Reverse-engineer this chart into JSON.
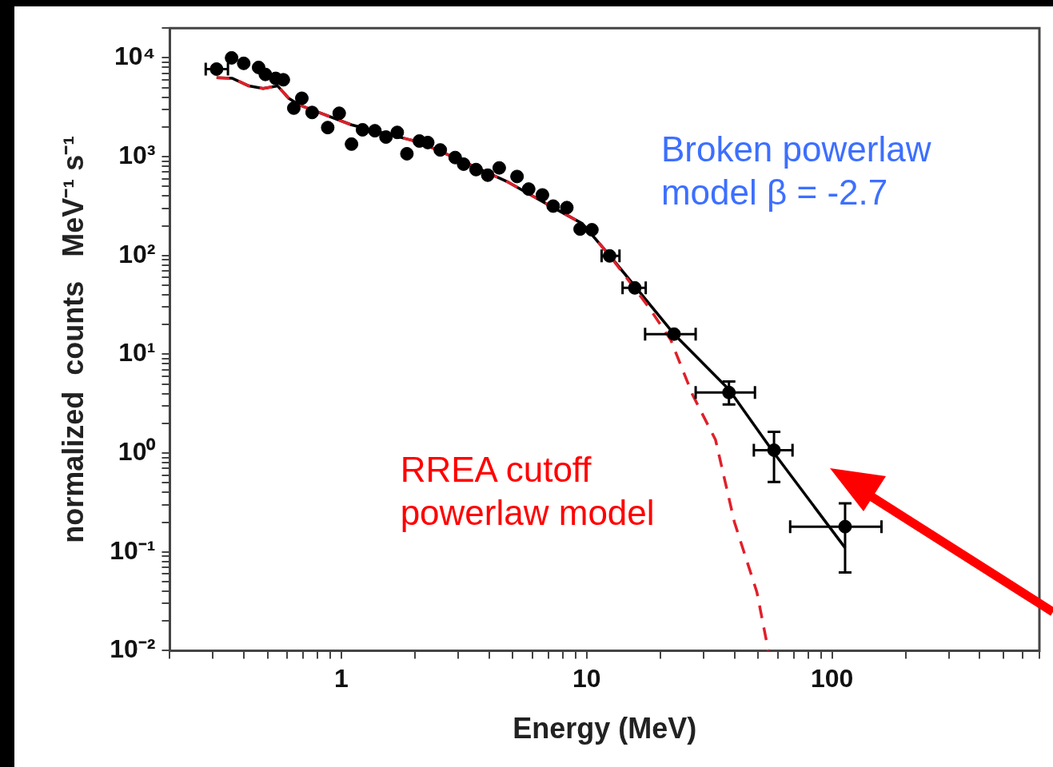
{
  "chart_data": {
    "type": "scatter",
    "xlabel": "Energy (MeV)",
    "ylabel": "normalized  counts   MeV⁻¹ s⁻¹",
    "log": "xy",
    "xlim": [
      0.2,
      700
    ],
    "ylim": [
      0.01,
      20000
    ],
    "xticks": [
      {
        "value": 0.2,
        "label": null
      },
      {
        "value": 0.3,
        "label": null
      },
      {
        "value": 0.4,
        "label": null
      },
      {
        "value": 0.5,
        "label": null
      },
      {
        "value": 0.6,
        "label": null
      },
      {
        "value": 0.7,
        "label": null
      },
      {
        "value": 0.8,
        "label": null
      },
      {
        "value": 0.9,
        "label": null
      },
      1,
      {
        "value": 2,
        "label": null
      },
      {
        "value": 3,
        "label": null
      },
      {
        "value": 4,
        "label": null
      },
      {
        "value": 5,
        "label": null
      },
      {
        "value": 6,
        "label": null
      },
      {
        "value": 7,
        "label": null
      },
      {
        "value": 8,
        "label": null
      },
      {
        "value": 9,
        "label": null
      },
      10,
      {
        "value": 20,
        "label": null
      },
      {
        "value": 30,
        "label": null
      },
      {
        "value": 40,
        "label": null
      },
      {
        "value": 50,
        "label": null
      },
      {
        "value": 60,
        "label": null
      },
      {
        "value": 70,
        "label": null
      },
      {
        "value": 80,
        "label": null
      },
      {
        "value": 90,
        "label": null
      },
      100,
      {
        "value": 200,
        "label": null
      },
      {
        "value": 300,
        "label": null
      },
      {
        "value": 400,
        "label": null
      },
      {
        "value": 500,
        "label": null
      },
      {
        "value": 600,
        "label": null
      },
      {
        "value": 700,
        "label": null
      }
    ],
    "yticks": [
      {
        "value": 0.01,
        "label": "10⁻²"
      },
      {
        "value": 0.02,
        "label": null
      },
      {
        "value": 0.03,
        "label": null
      },
      {
        "value": 0.04,
        "label": null
      },
      {
        "value": 0.05,
        "label": null
      },
      {
        "value": 0.06,
        "label": null
      },
      {
        "value": 0.07,
        "label": null
      },
      {
        "value": 0.08,
        "label": null
      },
      {
        "value": 0.09,
        "label": null
      },
      {
        "value": 0.1,
        "label": "10⁻¹"
      },
      {
        "value": 0.2,
        "label": null
      },
      {
        "value": 0.3,
        "label": null
      },
      {
        "value": 0.4,
        "label": null
      },
      {
        "value": 0.5,
        "label": null
      },
      {
        "value": 0.6,
        "label": null
      },
      {
        "value": 0.7,
        "label": null
      },
      {
        "value": 0.8,
        "label": null
      },
      {
        "value": 0.9,
        "label": null
      },
      {
        "value": 1,
        "label": "10⁰"
      },
      {
        "value": 2,
        "label": null
      },
      {
        "value": 3,
        "label": null
      },
      {
        "value": 4,
        "label": null
      },
      {
        "value": 5,
        "label": null
      },
      {
        "value": 6,
        "label": null
      },
      {
        "value": 7,
        "label": null
      },
      {
        "value": 8,
        "label": null
      },
      {
        "value": 9,
        "label": null
      },
      {
        "value": 10,
        "label": "10¹"
      },
      {
        "value": 20,
        "label": null
      },
      {
        "value": 30,
        "label": null
      },
      {
        "value": 40,
        "label": null
      },
      {
        "value": 50,
        "label": null
      },
      {
        "value": 60,
        "label": null
      },
      {
        "value": 70,
        "label": null
      },
      {
        "value": 80,
        "label": null
      },
      {
        "value": 90,
        "label": null
      },
      {
        "value": 100,
        "label": "10²"
      },
      {
        "value": 200,
        "label": null
      },
      {
        "value": 300,
        "label": null
      },
      {
        "value": 400,
        "label": null
      },
      {
        "value": 500,
        "label": null
      },
      {
        "value": 600,
        "label": null
      },
      {
        "value": 700,
        "label": null
      },
      {
        "value": 800,
        "label": null
      },
      {
        "value": 900,
        "label": null
      },
      {
        "value": 1000,
        "label": "10³"
      },
      {
        "value": 2000,
        "label": null
      },
      {
        "value": 3000,
        "label": null
      },
      {
        "value": 4000,
        "label": null
      },
      {
        "value": 5000,
        "label": null
      },
      {
        "value": 6000,
        "label": null
      },
      {
        "value": 7000,
        "label": null
      },
      {
        "value": 8000,
        "label": null
      },
      {
        "value": 9000,
        "label": null
      },
      {
        "value": 10000,
        "label": "10⁴"
      },
      {
        "value": 20000,
        "label": null
      }
    ],
    "grid": false,
    "legend": false,
    "annotations": [
      "Broken powerlaw\nmodel β = -2.7",
      "RREA cutoff\npowerlaw model"
    ],
    "series": [
      {
        "type": "line",
        "color": "#000000",
        "line_style": "solid",
        "marker": "none",
        "x": [
          0.31,
          0.36,
          0.42,
          0.48,
          0.55,
          0.61,
          0.68,
          1.1,
          2.08,
          3.0,
          4.8,
          6.9,
          9.6,
          12.4,
          22.7,
          38,
          58,
          113
        ],
        "values": [
          6300,
          6200,
          5200,
          4900,
          5200,
          3900,
          3300,
          2100,
          1400,
          940,
          550,
          330,
          210,
          100,
          16,
          4.4,
          1.0,
          0.11
        ]
      },
      {
        "type": "line",
        "color": "#e0202a",
        "line_style": "dashed",
        "marker": "none",
        "x": [
          0.31,
          0.36,
          0.42,
          0.48,
          0.55,
          0.61,
          0.68,
          1.1,
          2.08,
          3.0,
          4.8,
          6.9,
          9.6,
          12.4,
          17.9,
          22,
          27,
          33.5,
          40,
          49.4,
          55
        ],
        "values": [
          6300,
          6200,
          5200,
          4900,
          5200,
          3900,
          3300,
          2100,
          1400,
          940,
          550,
          330,
          210,
          100,
          30,
          14,
          3.9,
          1.36,
          0.2,
          0.039,
          0.01
        ]
      },
      {
        "color": "#000000",
        "marker": "circle",
        "x": [
          0.31,
          0.357,
          0.4,
          0.46,
          0.49,
          0.54,
          0.58,
          0.64,
          0.69,
          0.76,
          0.88,
          0.98,
          1.1,
          1.22,
          1.37,
          1.52,
          1.69,
          1.85,
          2.08,
          2.25,
          2.53,
          2.91,
          3.15,
          3.54,
          3.95,
          4.4,
          5.2,
          5.8,
          6.6,
          7.3,
          8.3,
          9.4,
          10.5,
          12.4,
          15.7,
          22.7,
          38,
          58,
          113
        ],
        "values": [
          7700,
          10000,
          8800,
          8000,
          6800,
          6200,
          6000,
          3100,
          3900,
          2800,
          1970,
          2750,
          1340,
          1870,
          1830,
          1580,
          1760,
          1070,
          1440,
          1390,
          1170,
          980,
          840,
          740,
          650,
          770,
          630,
          470,
          410,
          316,
          305,
          185,
          182,
          99,
          47,
          16,
          4.1,
          1.07,
          0.18
        ],
        "errors": [
          null,
          null,
          null,
          null,
          null,
          null,
          null,
          null,
          null,
          null,
          null,
          null,
          null,
          null,
          null,
          null,
          null,
          null,
          null,
          null,
          null,
          null,
          null,
          null,
          null,
          null,
          null,
          null,
          null,
          null,
          null,
          null,
          null,
          null,
          null,
          null,
          [
            3.1,
            5.3
          ],
          [
            0.51,
            1.64
          ],
          [
            0.062,
            0.31
          ]
        ],
        "xerrors": [
          [
            0.28,
            0.345
          ],
          null,
          null,
          null,
          null,
          null,
          null,
          null,
          null,
          null,
          null,
          null,
          null,
          null,
          null,
          null,
          null,
          null,
          null,
          null,
          null,
          null,
          null,
          null,
          null,
          null,
          null,
          null,
          null,
          null,
          null,
          null,
          null,
          [
            11.5,
            13.6
          ],
          [
            14.0,
            17.4
          ],
          [
            17.3,
            27.8
          ],
          [
            27.8,
            48.5
          ],
          [
            48,
            69
          ],
          [
            67.5,
            159
          ]
        ]
      }
    ]
  }
}
